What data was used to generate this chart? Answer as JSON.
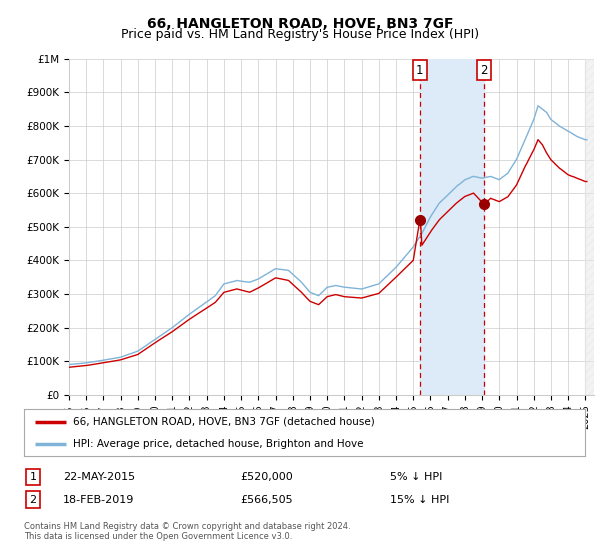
{
  "title": "66, HANGLETON ROAD, HOVE, BN3 7GF",
  "subtitle": "Price paid vs. HM Land Registry's House Price Index (HPI)",
  "title_fontsize": 10,
  "subtitle_fontsize": 9,
  "background_color": "#ffffff",
  "plot_bg_color": "#ffffff",
  "grid_color": "#cccccc",
  "hpi_line_color": "#7fb3d8",
  "price_line_color": "#cc0000",
  "shade_color": "#ddeaf7",
  "marker_color": "#990000",
  "annotation_line_color": "#cc0000",
  "ylim": [
    0,
    1000000
  ],
  "xlim_start": 1995.0,
  "xlim_end": 2025.5,
  "ylabel_ticks": [
    0,
    100000,
    200000,
    300000,
    400000,
    500000,
    600000,
    700000,
    800000,
    900000,
    1000000
  ],
  "ytick_labels": [
    "£0",
    "£100K",
    "£200K",
    "£300K",
    "£400K",
    "£500K",
    "£600K",
    "£700K",
    "£800K",
    "£900K",
    "£1M"
  ],
  "xtick_years": [
    1995,
    1996,
    1997,
    1998,
    1999,
    2000,
    2001,
    2002,
    2003,
    2004,
    2005,
    2006,
    2007,
    2008,
    2009,
    2010,
    2011,
    2012,
    2013,
    2014,
    2015,
    2016,
    2017,
    2018,
    2019,
    2020,
    2021,
    2022,
    2023,
    2024,
    2025
  ],
  "transaction1_year": 2015.38,
  "transaction1_price": 520000,
  "transaction2_year": 2019.12,
  "transaction2_price": 566505,
  "legend_label_price": "66, HANGLETON ROAD, HOVE, BN3 7GF (detached house)",
  "legend_label_hpi": "HPI: Average price, detached house, Brighton and Hove",
  "footnote": "Contains HM Land Registry data © Crown copyright and database right 2024.\nThis data is licensed under the Open Government Licence v3.0."
}
